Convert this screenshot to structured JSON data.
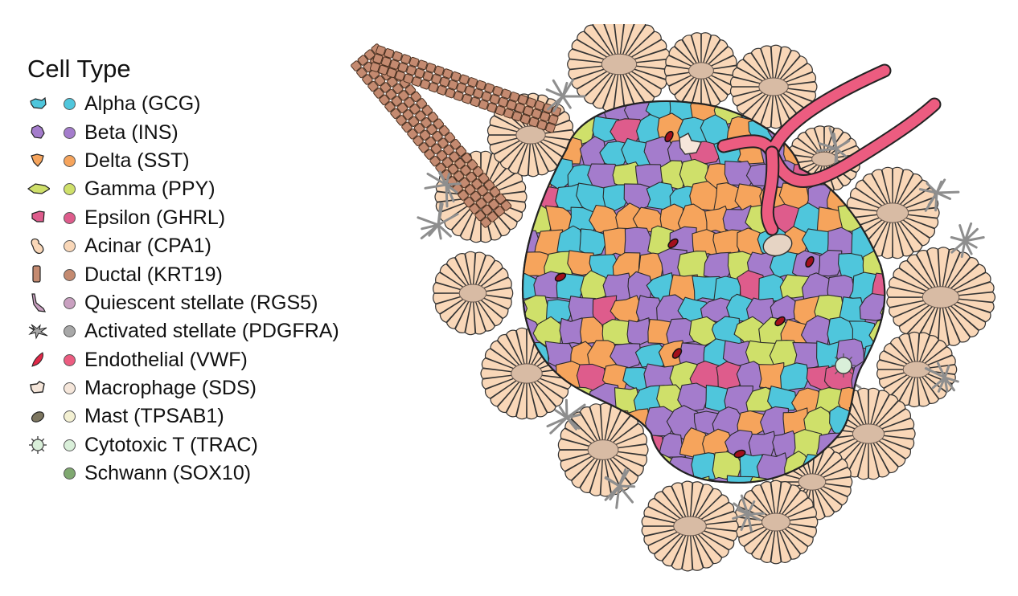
{
  "legend": {
    "title": "Cell Type",
    "items": [
      {
        "id": "alpha",
        "label": "Alpha (GCG)",
        "color": "#4fc6dc",
        "icon": "alpha-cell-icon"
      },
      {
        "id": "beta",
        "label": "Beta (INS)",
        "color": "#a47ccc",
        "icon": "beta-cell-icon"
      },
      {
        "id": "delta",
        "label": "Delta (SST)",
        "color": "#f6a45c",
        "icon": "delta-cell-icon"
      },
      {
        "id": "gamma",
        "label": "Gamma (PPY)",
        "color": "#cfe06a",
        "icon": "gamma-cell-icon"
      },
      {
        "id": "epsilon",
        "label": "Epsilon (GHRL)",
        "color": "#de5c8c",
        "icon": "epsilon-cell-icon"
      },
      {
        "id": "acinar",
        "label": "Acinar (CPA1)",
        "color": "#f9d7b8",
        "icon": "acinar-cell-icon"
      },
      {
        "id": "ductal",
        "label": "Ductal (KRT19)",
        "color": "#c48a70",
        "icon": "ductal-cell-icon"
      },
      {
        "id": "quiescent_stellate",
        "label": "Quiescent stellate (RGS5)",
        "color": "#c9a0c0",
        "icon": "quiescent-stellate-icon"
      },
      {
        "id": "activated_stellate",
        "label": "Activated stellate (PDGFRA)",
        "color": "#a8a8a8",
        "icon": "activated-stellate-icon"
      },
      {
        "id": "endothelial",
        "label": "Endothelial (VWF)",
        "color": "#ec5c80",
        "icon": "endothelial-cell-icon"
      },
      {
        "id": "macrophage",
        "label": "Macrophage (SDS)",
        "color": "#f5e6da",
        "icon": "macrophage-icon"
      },
      {
        "id": "mast",
        "label": "Mast (TPSAB1)",
        "color": "#f3f0d2",
        "icon": "mast-cell-icon"
      },
      {
        "id": "cytotoxic_t",
        "label": "Cytotoxic T (TRAC)",
        "color": "#d9efd9",
        "icon": "cytotoxic-t-cell-icon"
      },
      {
        "id": "schwann",
        "label": "Schwann (SOX10)",
        "color": "#7fa870",
        "icon": ""
      }
    ]
  }
}
